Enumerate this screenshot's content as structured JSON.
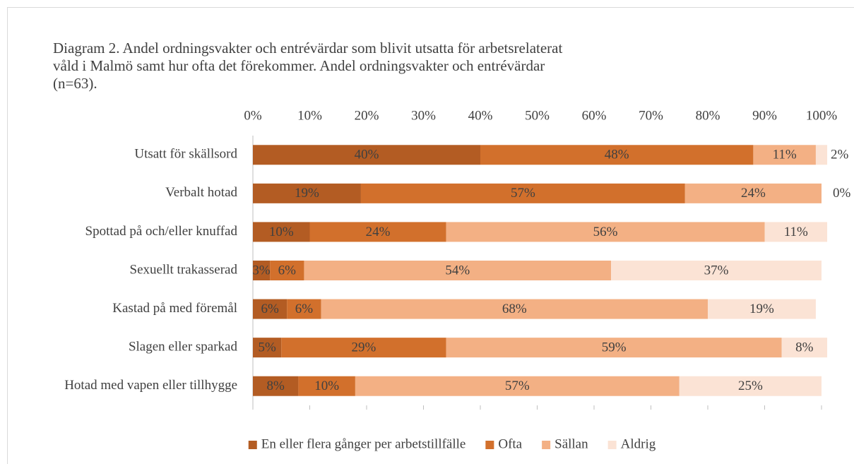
{
  "chart_data": {
    "type": "stacked_barh",
    "title": "Diagram 2. Andel ordningsvakter och entrévärdar som blivit utsatta för arbetsrelaterat våld i Malmö samt hur ofta det förekommer. Andel ordningsvakter och entrévärdar (n=63).",
    "categories": [
      "Utsatt för skällsord",
      "Verbalt hotad",
      "Spottad på och/eller knuffad",
      "Sexuellt trakasserad",
      "Kastad på med föremål",
      "Slagen eller sparkad",
      "Hotad med vapen eller tillhygge"
    ],
    "series": [
      {
        "name": "En eller flera gånger per arbetstillfälle",
        "color": "#b35c23",
        "values": [
          40,
          19,
          10,
          3,
          6,
          5,
          8
        ],
        "value_labels": [
          "40%",
          "19%",
          "10%",
          "3%",
          "6%",
          "5%",
          "8%"
        ]
      },
      {
        "name": "Ofta",
        "color": "#d2702c",
        "values": [
          48,
          57,
          24,
          6,
          6,
          29,
          10
        ],
        "value_labels": [
          "48%",
          "57%",
          "24%",
          "6%",
          "6%",
          "29%",
          "10%"
        ]
      },
      {
        "name": "Sällan",
        "color": "#f3b084",
        "values": [
          11,
          24,
          56,
          54,
          68,
          59,
          57
        ],
        "value_labels": [
          "11%",
          "24%",
          "56%",
          "54%",
          "68%",
          "59%",
          "57%"
        ]
      },
      {
        "name": "Aldrig",
        "color": "#fbe3d5",
        "values": [
          2,
          0,
          11,
          37,
          19,
          8,
          25
        ],
        "value_labels": [
          "2%",
          "0%",
          "11%",
          "37%",
          "19%",
          "8%",
          "25%"
        ]
      }
    ],
    "xlim": [
      0,
      100
    ],
    "xticks": [
      {
        "value": 0,
        "label": "0%"
      },
      {
        "value": 10,
        "label": "10%"
      },
      {
        "value": 20,
        "label": "20%"
      },
      {
        "value": 30,
        "label": "30%"
      },
      {
        "value": 40,
        "label": "40%"
      },
      {
        "value": 50,
        "label": "50%"
      },
      {
        "value": 60,
        "label": "60%"
      },
      {
        "value": 70,
        "label": "70%"
      },
      {
        "value": 80,
        "label": "80%"
      },
      {
        "value": 90,
        "label": "90%"
      },
      {
        "value": 100,
        "label": "100%"
      }
    ],
    "legend": "bottom"
  }
}
